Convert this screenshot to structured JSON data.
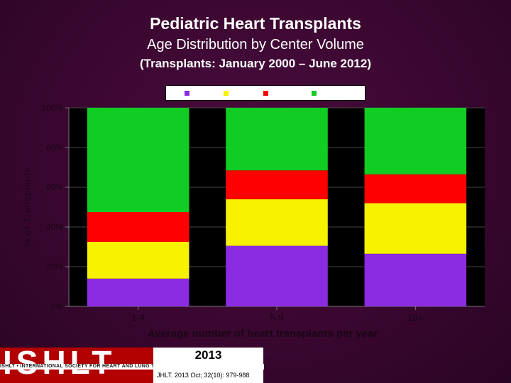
{
  "title": "Pediatric Heart Transplants",
  "subtitle": "Age Distribution by Center Volume",
  "subtitle2": "(Transplants: January  2000 –  June 2012)",
  "footer": {
    "logo_text": "ISHLT",
    "logo_subtitle": "ISHLT • INTERNATIONAL SOCIETY FOR HEART AND LUNG TRANSPLANTATION",
    "year": "2013",
    "citation": "JHLT. 2013 Oct; 32(10): 979-988"
  },
  "chart_data": {
    "type": "bar",
    "stacked": true,
    "percent": true,
    "xlabel": "Average number of heart transplants per year",
    "ylabel": "% of Transplants",
    "categories": [
      "1-4",
      "5-9",
      "10+"
    ],
    "ylim": [
      0,
      100
    ],
    "yticks": [
      "0%",
      "20%",
      "40%",
      "60%",
      "80%",
      "100%"
    ],
    "grid": true,
    "legend_position": "top",
    "series": [
      {
        "color": "#8b2be2",
        "values": [
          14,
          30.5,
          26.5
        ]
      },
      {
        "color": "#f7f200",
        "values": [
          18.5,
          23.5,
          25.5
        ]
      },
      {
        "color": "#ff0000",
        "values": [
          15,
          14.5,
          14.5
        ]
      },
      {
        "color": "#11cc22",
        "values": [
          52.5,
          31.5,
          33.5
        ]
      }
    ]
  }
}
